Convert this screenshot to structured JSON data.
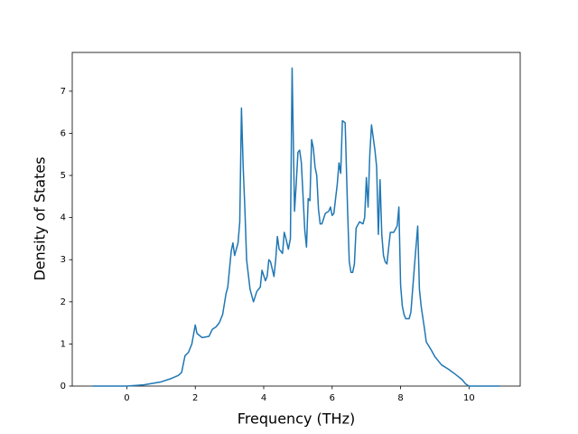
{
  "chart_data": {
    "type": "line",
    "xlabel": "Frequency (THz)",
    "ylabel": "Density of States",
    "xlim": [
      -1.595,
      11.495
    ],
    "ylim": [
      0,
      7.92
    ],
    "xticks": [
      0,
      2,
      4,
      6,
      8,
      10
    ],
    "yticks": [
      0,
      1,
      2,
      3,
      4,
      5,
      6,
      7
    ],
    "series": [
      {
        "color": "#1f77b4",
        "x": [
          -1.0,
          0,
          0.5,
          1.0,
          1.3,
          1.5,
          1.6,
          1.7,
          1.8,
          1.9,
          2.0,
          2.05,
          2.2,
          2.4,
          2.5,
          2.6,
          2.7,
          2.8,
          2.9,
          2.95,
          3.05,
          3.1,
          3.15,
          3.25,
          3.3,
          3.35,
          3.4,
          3.45,
          3.5,
          3.6,
          3.7,
          3.8,
          3.9,
          3.95,
          4.05,
          4.1,
          4.15,
          4.2,
          4.3,
          4.35,
          4.4,
          4.45,
          4.55,
          4.6,
          4.65,
          4.72,
          4.78,
          4.83,
          4.9,
          4.95,
          5.0,
          5.05,
          5.1,
          5.2,
          5.25,
          5.3,
          5.35,
          5.4,
          5.45,
          5.5,
          5.55,
          5.6,
          5.65,
          5.7,
          5.8,
          5.9,
          5.95,
          6.0,
          6.05,
          6.15,
          6.2,
          6.25,
          6.3,
          6.38,
          6.45,
          6.5,
          6.55,
          6.6,
          6.65,
          6.7,
          6.8,
          6.9,
          6.95,
          7.0,
          7.05,
          7.1,
          7.15,
          7.25,
          7.3,
          7.35,
          7.4,
          7.45,
          7.5,
          7.55,
          7.6,
          7.7,
          7.8,
          7.9,
          7.95,
          8.0,
          8.05,
          8.1,
          8.15,
          8.25,
          8.3,
          8.4,
          8.5,
          8.55,
          8.6,
          8.7,
          8.75,
          8.9,
          9.0,
          9.1,
          9.2,
          9.4,
          9.6,
          9.8,
          9.9,
          10.0,
          10.9
        ],
        "values": [
          0,
          0,
          0.03,
          0.1,
          0.18,
          0.25,
          0.32,
          0.72,
          0.8,
          1.0,
          1.45,
          1.25,
          1.15,
          1.18,
          1.35,
          1.4,
          1.5,
          1.7,
          2.2,
          2.35,
          3.2,
          3.4,
          3.1,
          3.4,
          3.9,
          6.6,
          5.2,
          4.2,
          3.0,
          2.3,
          2.0,
          2.25,
          2.35,
          2.75,
          2.5,
          2.6,
          3.0,
          2.95,
          2.6,
          3.0,
          3.55,
          3.25,
          3.15,
          3.65,
          3.5,
          3.25,
          3.5,
          7.55,
          4.15,
          4.8,
          5.55,
          5.6,
          5.3,
          3.7,
          3.3,
          4.45,
          4.4,
          5.85,
          5.65,
          5.2,
          5.0,
          4.2,
          3.85,
          3.85,
          4.1,
          4.15,
          4.25,
          4.05,
          4.1,
          4.8,
          5.3,
          5.05,
          6.3,
          6.25,
          4.2,
          2.95,
          2.7,
          2.7,
          2.9,
          3.75,
          3.9,
          3.85,
          4.0,
          4.95,
          4.25,
          5.5,
          6.2,
          5.6,
          5.2,
          3.6,
          4.9,
          3.6,
          3.1,
          2.95,
          2.9,
          3.65,
          3.65,
          3.8,
          4.25,
          2.4,
          1.9,
          1.7,
          1.6,
          1.6,
          1.75,
          2.8,
          3.8,
          2.3,
          1.9,
          1.35,
          1.05,
          0.85,
          0.7,
          0.6,
          0.5,
          0.4,
          0.28,
          0.15,
          0.05,
          0,
          0
        ]
      }
    ]
  }
}
